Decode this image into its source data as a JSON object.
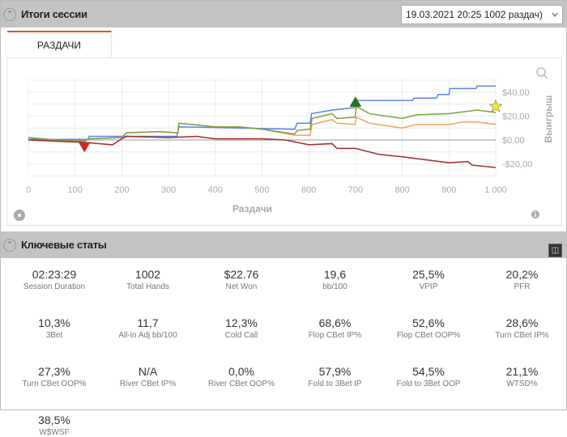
{
  "session": {
    "title": "Итоги сессии",
    "dropdown_value": "19.03.2021 20:25 1002 раздач)"
  },
  "tabs": [
    {
      "label": "РАЗДАЧИ",
      "active": true
    }
  ],
  "chart_data": {
    "type": "line",
    "xlabel": "Раздачи",
    "ylabel": "Выигрыш",
    "xlim": [
      0,
      1000
    ],
    "ylim": [
      -30,
      52
    ],
    "x_ticks": [
      "0",
      "100",
      "200",
      "300",
      "400",
      "500",
      "600",
      "700",
      "800",
      "900",
      "1 000"
    ],
    "y_ticks": [
      {
        "v": 40,
        "label": "$40,00"
      },
      {
        "v": 20,
        "label": "$20,00"
      },
      {
        "v": 0,
        "label": "$0,00"
      },
      {
        "v": -20,
        "label": "-$20,00"
      }
    ],
    "grid": true,
    "series": [
      {
        "color": "#5b84f0",
        "points": [
          [
            0,
            0.5
          ],
          [
            128,
            0.5
          ],
          [
            130,
            3
          ],
          [
            318,
            3
          ],
          [
            322,
            11
          ],
          [
            570,
            9
          ],
          [
            575,
            14
          ],
          [
            603,
            14
          ],
          [
            606,
            22
          ],
          [
            650,
            25
          ],
          [
            698,
            27
          ],
          [
            703,
            33
          ],
          [
            770,
            33
          ],
          [
            822,
            33
          ],
          [
            825,
            35
          ],
          [
            873,
            35
          ],
          [
            877,
            38
          ],
          [
            900,
            38
          ],
          [
            902,
            43
          ],
          [
            958,
            43
          ],
          [
            960,
            45
          ],
          [
            1000,
            45
          ]
        ]
      },
      {
        "color": "#f5a05a",
        "points": [
          [
            0,
            2
          ],
          [
            60,
            0
          ],
          [
            120,
            -1
          ],
          [
            130,
            1
          ],
          [
            200,
            2
          ],
          [
            210,
            6
          ],
          [
            280,
            7
          ],
          [
            320,
            6
          ],
          [
            322,
            14
          ],
          [
            400,
            11
          ],
          [
            450,
            11
          ],
          [
            500,
            9
          ],
          [
            570,
            4
          ],
          [
            603,
            4
          ],
          [
            607,
            13
          ],
          [
            650,
            17
          ],
          [
            660,
            14
          ],
          [
            699,
            13
          ],
          [
            702,
            19
          ],
          [
            730,
            14
          ],
          [
            800,
            10
          ],
          [
            830,
            13
          ],
          [
            900,
            13
          ],
          [
            930,
            15
          ],
          [
            960,
            15
          ],
          [
            1000,
            13
          ]
        ]
      },
      {
        "color": "#7ea03c",
        "points": [
          [
            0,
            2
          ],
          [
            60,
            0
          ],
          [
            120,
            -1
          ],
          [
            130,
            1
          ],
          [
            200,
            2
          ],
          [
            210,
            6
          ],
          [
            280,
            7
          ],
          [
            320,
            6
          ],
          [
            322,
            14
          ],
          [
            400,
            11
          ],
          [
            450,
            11
          ],
          [
            500,
            9
          ],
          [
            570,
            5
          ],
          [
            575,
            8
          ],
          [
            603,
            9
          ],
          [
            607,
            18
          ],
          [
            650,
            22
          ],
          [
            660,
            18
          ],
          [
            699,
            19
          ],
          [
            702,
            28
          ],
          [
            730,
            22
          ],
          [
            800,
            18
          ],
          [
            830,
            21
          ],
          [
            900,
            22
          ],
          [
            960,
            25
          ],
          [
            1000,
            23
          ]
        ]
      },
      {
        "color": "#a52a2a",
        "points": [
          [
            0,
            0
          ],
          [
            60,
            -1
          ],
          [
            120,
            -2
          ],
          [
            180,
            -4
          ],
          [
            200,
            1
          ],
          [
            210,
            3
          ],
          [
            300,
            2
          ],
          [
            360,
            3
          ],
          [
            400,
            1
          ],
          [
            500,
            1
          ],
          [
            550,
            0
          ],
          [
            600,
            -4
          ],
          [
            650,
            -3
          ],
          [
            660,
            -7
          ],
          [
            700,
            -7
          ],
          [
            750,
            -12
          ],
          [
            800,
            -14
          ],
          [
            900,
            -19
          ],
          [
            940,
            -18
          ],
          [
            950,
            -21
          ],
          [
            1000,
            -23
          ]
        ]
      }
    ],
    "markers": [
      {
        "type": "triangle-down",
        "x": 120,
        "y": -6,
        "color": "#e02020"
      },
      {
        "type": "triangle-up",
        "x": 700,
        "y": 32,
        "color": "#1a7a1a"
      },
      {
        "type": "star",
        "x": 1000,
        "y": 28,
        "color": "#f5e830"
      }
    ]
  },
  "key_stats": {
    "title": "Ключевые статы",
    "items": [
      {
        "value": "02:23:29",
        "label": "Session Duration"
      },
      {
        "value": "1002",
        "label": "Total Hands"
      },
      {
        "value": "$22.76",
        "label": "Net Won"
      },
      {
        "value": "19,6",
        "label": "bb/100"
      },
      {
        "value": "25,5%",
        "label": "VPIP"
      },
      {
        "value": "20,2%",
        "label": "PFR"
      },
      {
        "value": "10,3%",
        "label": "3Bet"
      },
      {
        "value": "11,7",
        "label": "All-in Adj bb/100"
      },
      {
        "value": "12,3%",
        "label": "Cold Call"
      },
      {
        "value": "68,6%",
        "label": "Flop CBet IP%"
      },
      {
        "value": "52,6%",
        "label": "Flop CBet OOP%"
      },
      {
        "value": "28,6%",
        "label": "Turn CBet IP%"
      },
      {
        "value": "27,3%",
        "label": "Turn CBet OOP%"
      },
      {
        "value": "N/A",
        "label": "River CBet IP%"
      },
      {
        "value": "0,0%",
        "label": "River CBet OOP%"
      },
      {
        "value": "57,9%",
        "label": "Fold to 3Bet IP"
      },
      {
        "value": "54,5%",
        "label": "Fold to 3Bet OOP"
      },
      {
        "value": "21,1%",
        "label": "WTSD%"
      },
      {
        "value": "38,5%",
        "label": "W$WSF"
      }
    ]
  }
}
